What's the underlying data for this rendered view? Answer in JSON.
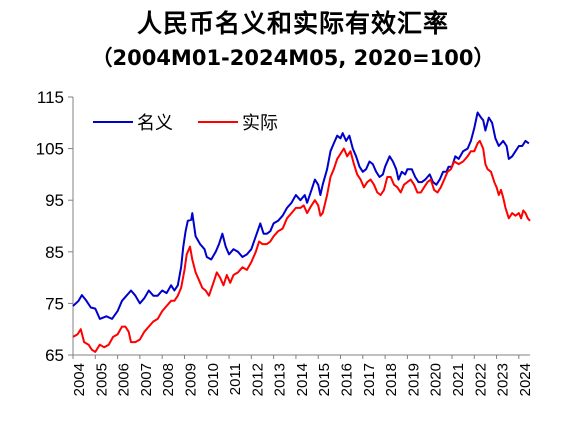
{
  "chart_data": {
    "type": "line",
    "title": "人民币名义和实际有效汇率",
    "subtitle": "（2004M01-2024M05, 2020=100）",
    "xlabel": "",
    "ylabel": "",
    "x_tick_labels": [
      "2004",
      "2005",
      "2006",
      "2007",
      "2008",
      "2009",
      "2010",
      "2011",
      "2012",
      "2013",
      "2014",
      "2015",
      "2016",
      "2017",
      "2018",
      "2019",
      "2020",
      "2021",
      "2022",
      "2023",
      "2024"
    ],
    "y_tick_labels": [
      "65",
      "75",
      "85",
      "95",
      "105",
      "115"
    ],
    "ylim": [
      65,
      115
    ],
    "xlim": [
      2004.0,
      2024.5
    ],
    "grid": false,
    "legend_position": "top-left",
    "colors": {
      "nominal": "#0000CC",
      "real": "#FF0000",
      "axis": "#808080"
    },
    "series": [
      {
        "name": "名义",
        "key": "nominal",
        "points": [
          [
            2004.0,
            74.5
          ],
          [
            2004.25,
            75.5
          ],
          [
            2004.4,
            76.6
          ],
          [
            2004.6,
            75.5
          ],
          [
            2004.8,
            74.2
          ],
          [
            2005.0,
            74.0
          ],
          [
            2005.2,
            72.0
          ],
          [
            2005.5,
            72.5
          ],
          [
            2005.75,
            72.0
          ],
          [
            2006.0,
            73.5
          ],
          [
            2006.2,
            75.5
          ],
          [
            2006.4,
            76.5
          ],
          [
            2006.6,
            77.5
          ],
          [
            2006.8,
            76.5
          ],
          [
            2007.0,
            75.0
          ],
          [
            2007.2,
            76.0
          ],
          [
            2007.4,
            77.5
          ],
          [
            2007.6,
            76.5
          ],
          [
            2007.8,
            76.5
          ],
          [
            2008.0,
            77.5
          ],
          [
            2008.2,
            77.0
          ],
          [
            2008.4,
            78.5
          ],
          [
            2008.55,
            77.5
          ],
          [
            2008.7,
            78.5
          ],
          [
            2008.85,
            82.0
          ],
          [
            2008.95,
            86.0
          ],
          [
            2009.05,
            89.0
          ],
          [
            2009.15,
            91.0
          ],
          [
            2009.3,
            91.2
          ],
          [
            2009.35,
            92.5
          ],
          [
            2009.5,
            88.0
          ],
          [
            2009.7,
            86.5
          ],
          [
            2009.9,
            85.5
          ],
          [
            2010.0,
            84.0
          ],
          [
            2010.2,
            83.5
          ],
          [
            2010.4,
            85.0
          ],
          [
            2010.55,
            86.5
          ],
          [
            2010.7,
            88.5
          ],
          [
            2010.85,
            86.0
          ],
          [
            2011.0,
            84.5
          ],
          [
            2011.2,
            85.5
          ],
          [
            2011.4,
            85.0
          ],
          [
            2011.6,
            84.0
          ],
          [
            2011.8,
            84.5
          ],
          [
            2012.0,
            85.5
          ],
          [
            2012.2,
            88.0
          ],
          [
            2012.4,
            90.5
          ],
          [
            2012.55,
            88.5
          ],
          [
            2012.7,
            88.5
          ],
          [
            2012.85,
            89.0
          ],
          [
            2013.0,
            90.5
          ],
          [
            2013.2,
            91.0
          ],
          [
            2013.4,
            92.0
          ],
          [
            2013.6,
            93.5
          ],
          [
            2013.8,
            94.5
          ],
          [
            2014.0,
            96.0
          ],
          [
            2014.2,
            95.0
          ],
          [
            2014.4,
            96.0
          ],
          [
            2014.5,
            94.5
          ],
          [
            2014.7,
            97.0
          ],
          [
            2014.85,
            99.0
          ],
          [
            2015.0,
            98.0
          ],
          [
            2015.1,
            96.0
          ],
          [
            2015.2,
            98.0
          ],
          [
            2015.4,
            101.0
          ],
          [
            2015.55,
            104.5
          ],
          [
            2015.7,
            106.0
          ],
          [
            2015.85,
            107.5
          ],
          [
            2016.0,
            107.0
          ],
          [
            2016.1,
            108.0
          ],
          [
            2016.25,
            106.5
          ],
          [
            2016.4,
            107.5
          ],
          [
            2016.55,
            105.0
          ],
          [
            2016.7,
            103.5
          ],
          [
            2016.85,
            101.5
          ],
          [
            2017.0,
            100.5
          ],
          [
            2017.15,
            101.0
          ],
          [
            2017.3,
            102.5
          ],
          [
            2017.45,
            102.0
          ],
          [
            2017.6,
            100.5
          ],
          [
            2017.75,
            99.5
          ],
          [
            2017.9,
            100.0
          ],
          [
            2018.0,
            101.5
          ],
          [
            2018.2,
            103.5
          ],
          [
            2018.35,
            102.5
          ],
          [
            2018.5,
            101.0
          ],
          [
            2018.6,
            99.0
          ],
          [
            2018.75,
            100.5
          ],
          [
            2018.9,
            100.0
          ],
          [
            2019.0,
            101.0
          ],
          [
            2019.2,
            101.0
          ],
          [
            2019.35,
            99.5
          ],
          [
            2019.5,
            98.5
          ],
          [
            2019.65,
            98.5
          ],
          [
            2019.8,
            99.0
          ],
          [
            2020.0,
            100.0
          ],
          [
            2020.15,
            98.5
          ],
          [
            2020.3,
            98.0
          ],
          [
            2020.45,
            99.0
          ],
          [
            2020.6,
            100.5
          ],
          [
            2020.75,
            100.5
          ],
          [
            2020.85,
            101.5
          ],
          [
            2021.0,
            101.5
          ],
          [
            2021.15,
            103.5
          ],
          [
            2021.3,
            103.0
          ],
          [
            2021.5,
            104.5
          ],
          [
            2021.7,
            105.0
          ],
          [
            2021.85,
            106.5
          ],
          [
            2022.0,
            109.0
          ],
          [
            2022.15,
            112.0
          ],
          [
            2022.3,
            111.0
          ],
          [
            2022.4,
            110.5
          ],
          [
            2022.5,
            108.5
          ],
          [
            2022.65,
            111.0
          ],
          [
            2022.8,
            110.0
          ],
          [
            2022.95,
            107.0
          ],
          [
            2023.1,
            105.5
          ],
          [
            2023.3,
            106.5
          ],
          [
            2023.45,
            105.5
          ],
          [
            2023.55,
            103.0
          ],
          [
            2023.7,
            103.5
          ],
          [
            2023.85,
            104.5
          ],
          [
            2024.0,
            105.5
          ],
          [
            2024.15,
            105.5
          ],
          [
            2024.3,
            106.5
          ],
          [
            2024.45,
            106.0
          ]
        ]
      },
      {
        "name": "实际",
        "key": "real",
        "points": [
          [
            2004.0,
            68.5
          ],
          [
            2004.2,
            69.0
          ],
          [
            2004.35,
            70.0
          ],
          [
            2004.5,
            67.5
          ],
          [
            2004.7,
            67.0
          ],
          [
            2004.85,
            66.0
          ],
          [
            2005.0,
            65.6
          ],
          [
            2005.2,
            67.0
          ],
          [
            2005.4,
            66.5
          ],
          [
            2005.6,
            67.0
          ],
          [
            2005.8,
            68.5
          ],
          [
            2006.0,
            69.0
          ],
          [
            2006.2,
            70.5
          ],
          [
            2006.35,
            70.5
          ],
          [
            2006.5,
            69.5
          ],
          [
            2006.6,
            67.5
          ],
          [
            2006.8,
            67.5
          ],
          [
            2007.0,
            68.0
          ],
          [
            2007.2,
            69.5
          ],
          [
            2007.4,
            70.5
          ],
          [
            2007.6,
            71.5
          ],
          [
            2007.8,
            72.0
          ],
          [
            2008.0,
            73.5
          ],
          [
            2008.2,
            74.5
          ],
          [
            2008.4,
            75.5
          ],
          [
            2008.55,
            75.5
          ],
          [
            2008.7,
            76.5
          ],
          [
            2008.85,
            78.0
          ],
          [
            2009.0,
            81.5
          ],
          [
            2009.1,
            84.5
          ],
          [
            2009.25,
            86.0
          ],
          [
            2009.35,
            83.5
          ],
          [
            2009.5,
            81.0
          ],
          [
            2009.65,
            79.5
          ],
          [
            2009.8,
            78.0
          ],
          [
            2009.95,
            77.5
          ],
          [
            2010.1,
            76.5
          ],
          [
            2010.3,
            79.0
          ],
          [
            2010.45,
            81.0
          ],
          [
            2010.6,
            80.0
          ],
          [
            2010.75,
            78.5
          ],
          [
            2010.9,
            80.5
          ],
          [
            2011.05,
            79.0
          ],
          [
            2011.2,
            80.5
          ],
          [
            2011.4,
            81.0
          ],
          [
            2011.6,
            82.0
          ],
          [
            2011.8,
            81.5
          ],
          [
            2012.0,
            83.0
          ],
          [
            2012.2,
            85.0
          ],
          [
            2012.35,
            87.0
          ],
          [
            2012.5,
            86.5
          ],
          [
            2012.7,
            86.5
          ],
          [
            2012.85,
            87.0
          ],
          [
            2013.0,
            88.0
          ],
          [
            2013.2,
            89.0
          ],
          [
            2013.4,
            89.5
          ],
          [
            2013.6,
            91.5
          ],
          [
            2013.8,
            92.5
          ],
          [
            2014.0,
            93.5
          ],
          [
            2014.2,
            93.5
          ],
          [
            2014.35,
            94.0
          ],
          [
            2014.5,
            92.5
          ],
          [
            2014.7,
            94.0
          ],
          [
            2014.85,
            95.0
          ],
          [
            2015.0,
            94.0
          ],
          [
            2015.1,
            92.0
          ],
          [
            2015.2,
            92.5
          ],
          [
            2015.4,
            96.0
          ],
          [
            2015.55,
            99.5
          ],
          [
            2015.7,
            101.0
          ],
          [
            2015.85,
            103.0
          ],
          [
            2016.0,
            104.0
          ],
          [
            2016.15,
            105.0
          ],
          [
            2016.3,
            103.5
          ],
          [
            2016.45,
            104.5
          ],
          [
            2016.6,
            102.0
          ],
          [
            2016.75,
            100.0
          ],
          [
            2016.9,
            99.0
          ],
          [
            2017.05,
            97.5
          ],
          [
            2017.2,
            98.5
          ],
          [
            2017.35,
            99.0
          ],
          [
            2017.5,
            98.0
          ],
          [
            2017.65,
            96.5
          ],
          [
            2017.8,
            96.0
          ],
          [
            2017.95,
            97.0
          ],
          [
            2018.1,
            99.5
          ],
          [
            2018.25,
            99.5
          ],
          [
            2018.4,
            98.0
          ],
          [
            2018.55,
            97.5
          ],
          [
            2018.7,
            96.5
          ],
          [
            2018.85,
            98.0
          ],
          [
            2019.0,
            98.5
          ],
          [
            2019.15,
            99.0
          ],
          [
            2019.3,
            98.0
          ],
          [
            2019.45,
            96.5
          ],
          [
            2019.6,
            96.5
          ],
          [
            2019.75,
            97.5
          ],
          [
            2019.9,
            98.5
          ],
          [
            2020.05,
            99.0
          ],
          [
            2020.2,
            97.0
          ],
          [
            2020.35,
            96.5
          ],
          [
            2020.5,
            97.5
          ],
          [
            2020.65,
            99.0
          ],
          [
            2020.8,
            100.5
          ],
          [
            2020.95,
            101.0
          ],
          [
            2021.1,
            102.5
          ],
          [
            2021.3,
            102.0
          ],
          [
            2021.5,
            102.5
          ],
          [
            2021.7,
            103.5
          ],
          [
            2021.85,
            104.5
          ],
          [
            2022.0,
            104.5
          ],
          [
            2022.15,
            106.0
          ],
          [
            2022.25,
            106.5
          ],
          [
            2022.4,
            105.0
          ],
          [
            2022.5,
            102.0
          ],
          [
            2022.6,
            101.0
          ],
          [
            2022.75,
            100.5
          ],
          [
            2022.9,
            98.5
          ],
          [
            2023.0,
            97.5
          ],
          [
            2023.1,
            96.0
          ],
          [
            2023.2,
            97.0
          ],
          [
            2023.3,
            95.5
          ],
          [
            2023.4,
            93.5
          ],
          [
            2023.55,
            91.5
          ],
          [
            2023.7,
            92.5
          ],
          [
            2023.85,
            92.0
          ],
          [
            2024.0,
            92.5
          ],
          [
            2024.1,
            91.5
          ],
          [
            2024.2,
            93.0
          ],
          [
            2024.3,
            92.5
          ],
          [
            2024.4,
            91.5
          ],
          [
            2024.5,
            91.0
          ]
        ]
      }
    ]
  }
}
